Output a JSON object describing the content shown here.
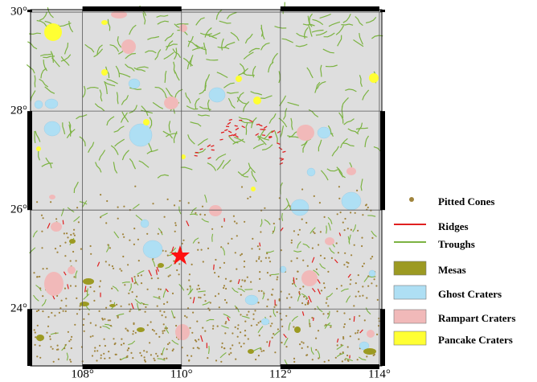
{
  "map": {
    "xlim": [
      106.95,
      114.05
    ],
    "ylim": [
      22.85,
      30.05
    ],
    "xticks": [
      {
        "value": 108,
        "label": "108°"
      },
      {
        "value": 110,
        "label": "110°"
      },
      {
        "value": 112,
        "label": "112°"
      },
      {
        "value": 114,
        "label": "114°"
      }
    ],
    "yticks": [
      {
        "value": 30,
        "label": "30°"
      },
      {
        "value": 28,
        "label": "28°"
      },
      {
        "value": 26,
        "label": "26°"
      },
      {
        "value": 24,
        "label": "24°"
      }
    ],
    "grid": true,
    "legend": [
      {
        "name": "Pitted Cones",
        "symbol": "dot",
        "color": "#a0843c"
      },
      {
        "name": "Ridges",
        "symbol": "line",
        "color": "#e02020"
      },
      {
        "name": "Troughs",
        "symbol": "line",
        "color": "#7cb342"
      },
      {
        "name": "Mesas",
        "symbol": "box",
        "color": "#9c9a22"
      },
      {
        "name": "Ghost Craters",
        "symbol": "box",
        "color": "#aedff4"
      },
      {
        "name": "Rampart Craters",
        "symbol": "box",
        "color": "#f1b9b9"
      },
      {
        "name": "Pancake Craters",
        "symbol": "box",
        "color": "#ffff33"
      }
    ]
  }
}
